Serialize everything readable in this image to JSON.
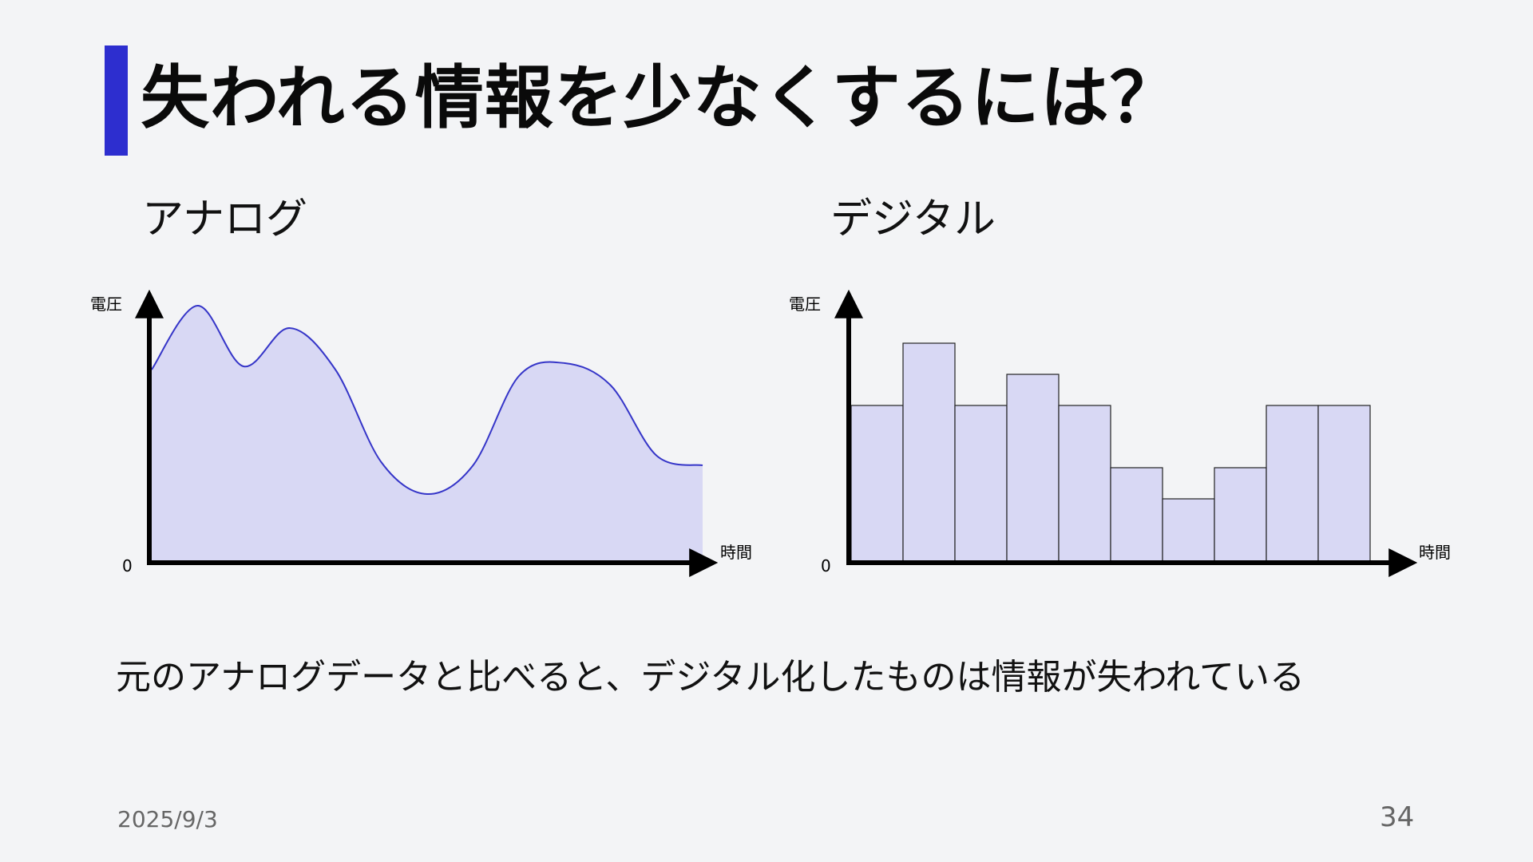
{
  "slide": {
    "title": "失われる情報を少なくするには？",
    "accent_color": "#2d2ecf",
    "analog_label": "アナログ",
    "digital_label": "デジタル",
    "caption": "元のアナログデータと比べると、デジタル化したものは情報が失われている",
    "date": "2025/9/3",
    "page_number": "34"
  },
  "chart_data": [
    {
      "type": "area",
      "name": "analog",
      "ylabel": "電圧",
      "xlabel": "時間",
      "origin_label": "0",
      "fill_color": "#d8d8f4",
      "line_color": "#3535c8",
      "x": [
        0,
        1,
        2,
        3,
        4,
        5,
        6,
        7,
        8,
        9,
        10,
        11,
        12
      ],
      "y": [
        6.0,
        8.0,
        6.1,
        7.3,
        6.0,
        3.1,
        2.1,
        3.0,
        5.8,
        6.2,
        5.5,
        3.3,
        3.0
      ]
    },
    {
      "type": "bar",
      "name": "digital",
      "ylabel": "電圧",
      "xlabel": "時間",
      "origin_label": "0",
      "fill_color": "#d8d8f4",
      "edge_color": "#222222",
      "values": [
        5,
        7,
        5,
        6,
        5,
        3,
        2,
        3,
        5,
        5
      ]
    }
  ]
}
